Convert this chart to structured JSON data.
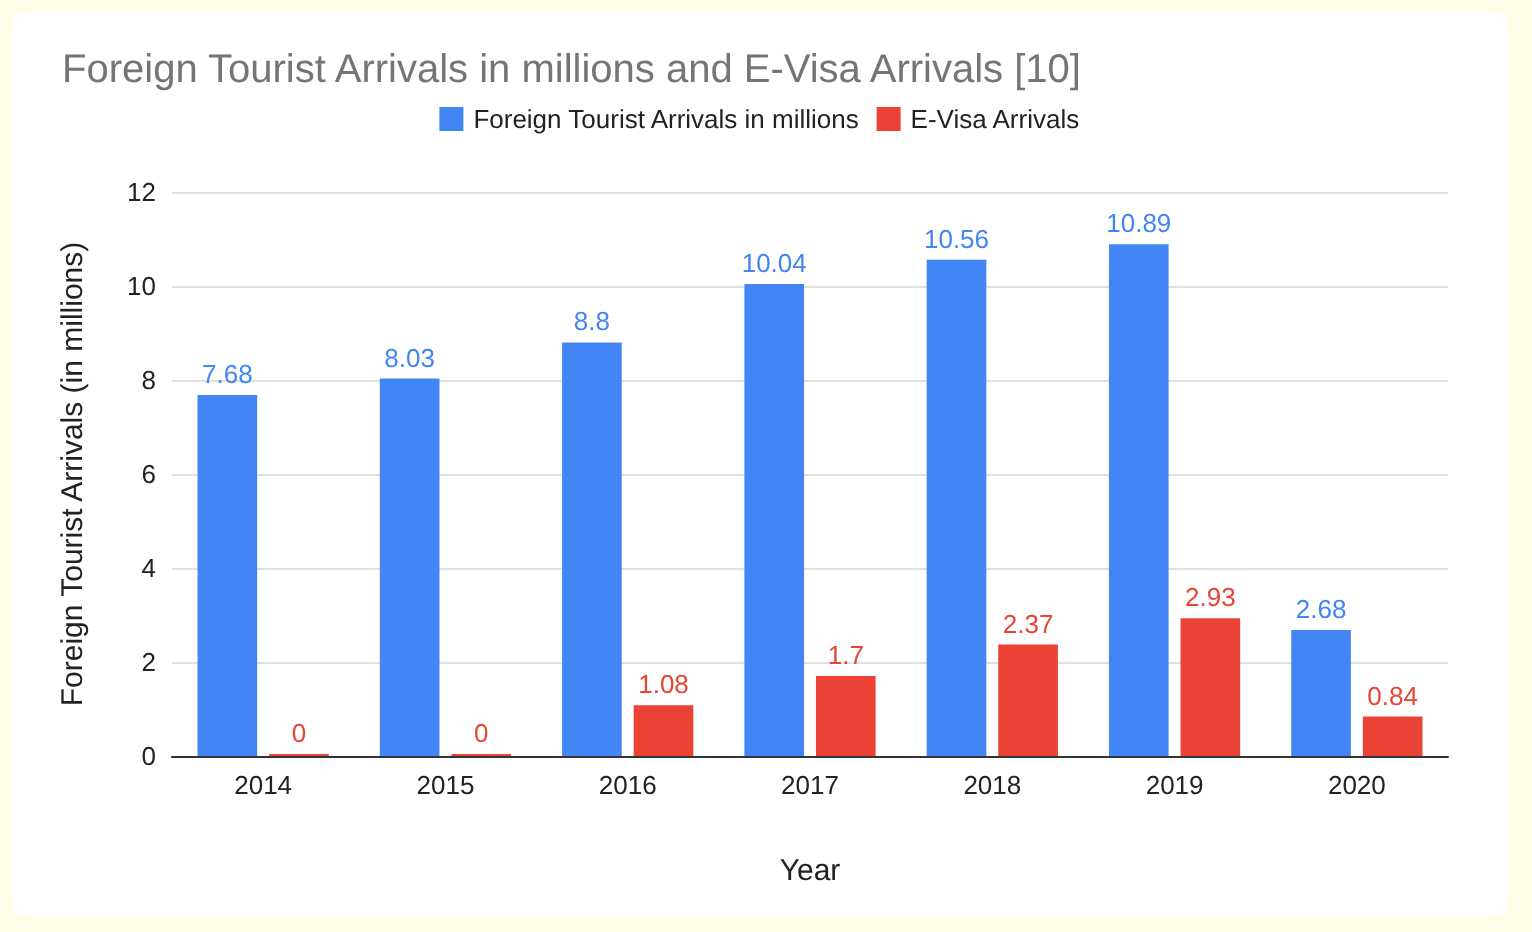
{
  "chart_data": {
    "type": "bar",
    "title": "Foreign Tourist Arrivals in millions and E-Visa Arrivals [10]",
    "xlabel": "Year",
    "ylabel": "Foreign Tourist Arrivals (in millions)",
    "categories": [
      "2014",
      "2015",
      "2016",
      "2017",
      "2018",
      "2019",
      "2020"
    ],
    "series": [
      {
        "name": "Foreign Tourist Arrivals in millions",
        "color": "#4285f4",
        "values": [
          7.68,
          8.03,
          8.8,
          10.04,
          10.56,
          10.89,
          2.68
        ]
      },
      {
        "name": "E-Visa Arrivals",
        "color": "#ea4335",
        "values": [
          0,
          0,
          1.08,
          1.7,
          2.37,
          2.93,
          0.84
        ]
      }
    ],
    "ylim": [
      0,
      12
    ],
    "yticks": [
      0,
      2,
      4,
      6,
      8,
      10,
      12
    ],
    "grid": "y",
    "legend": "top",
    "data_labels": true
  }
}
